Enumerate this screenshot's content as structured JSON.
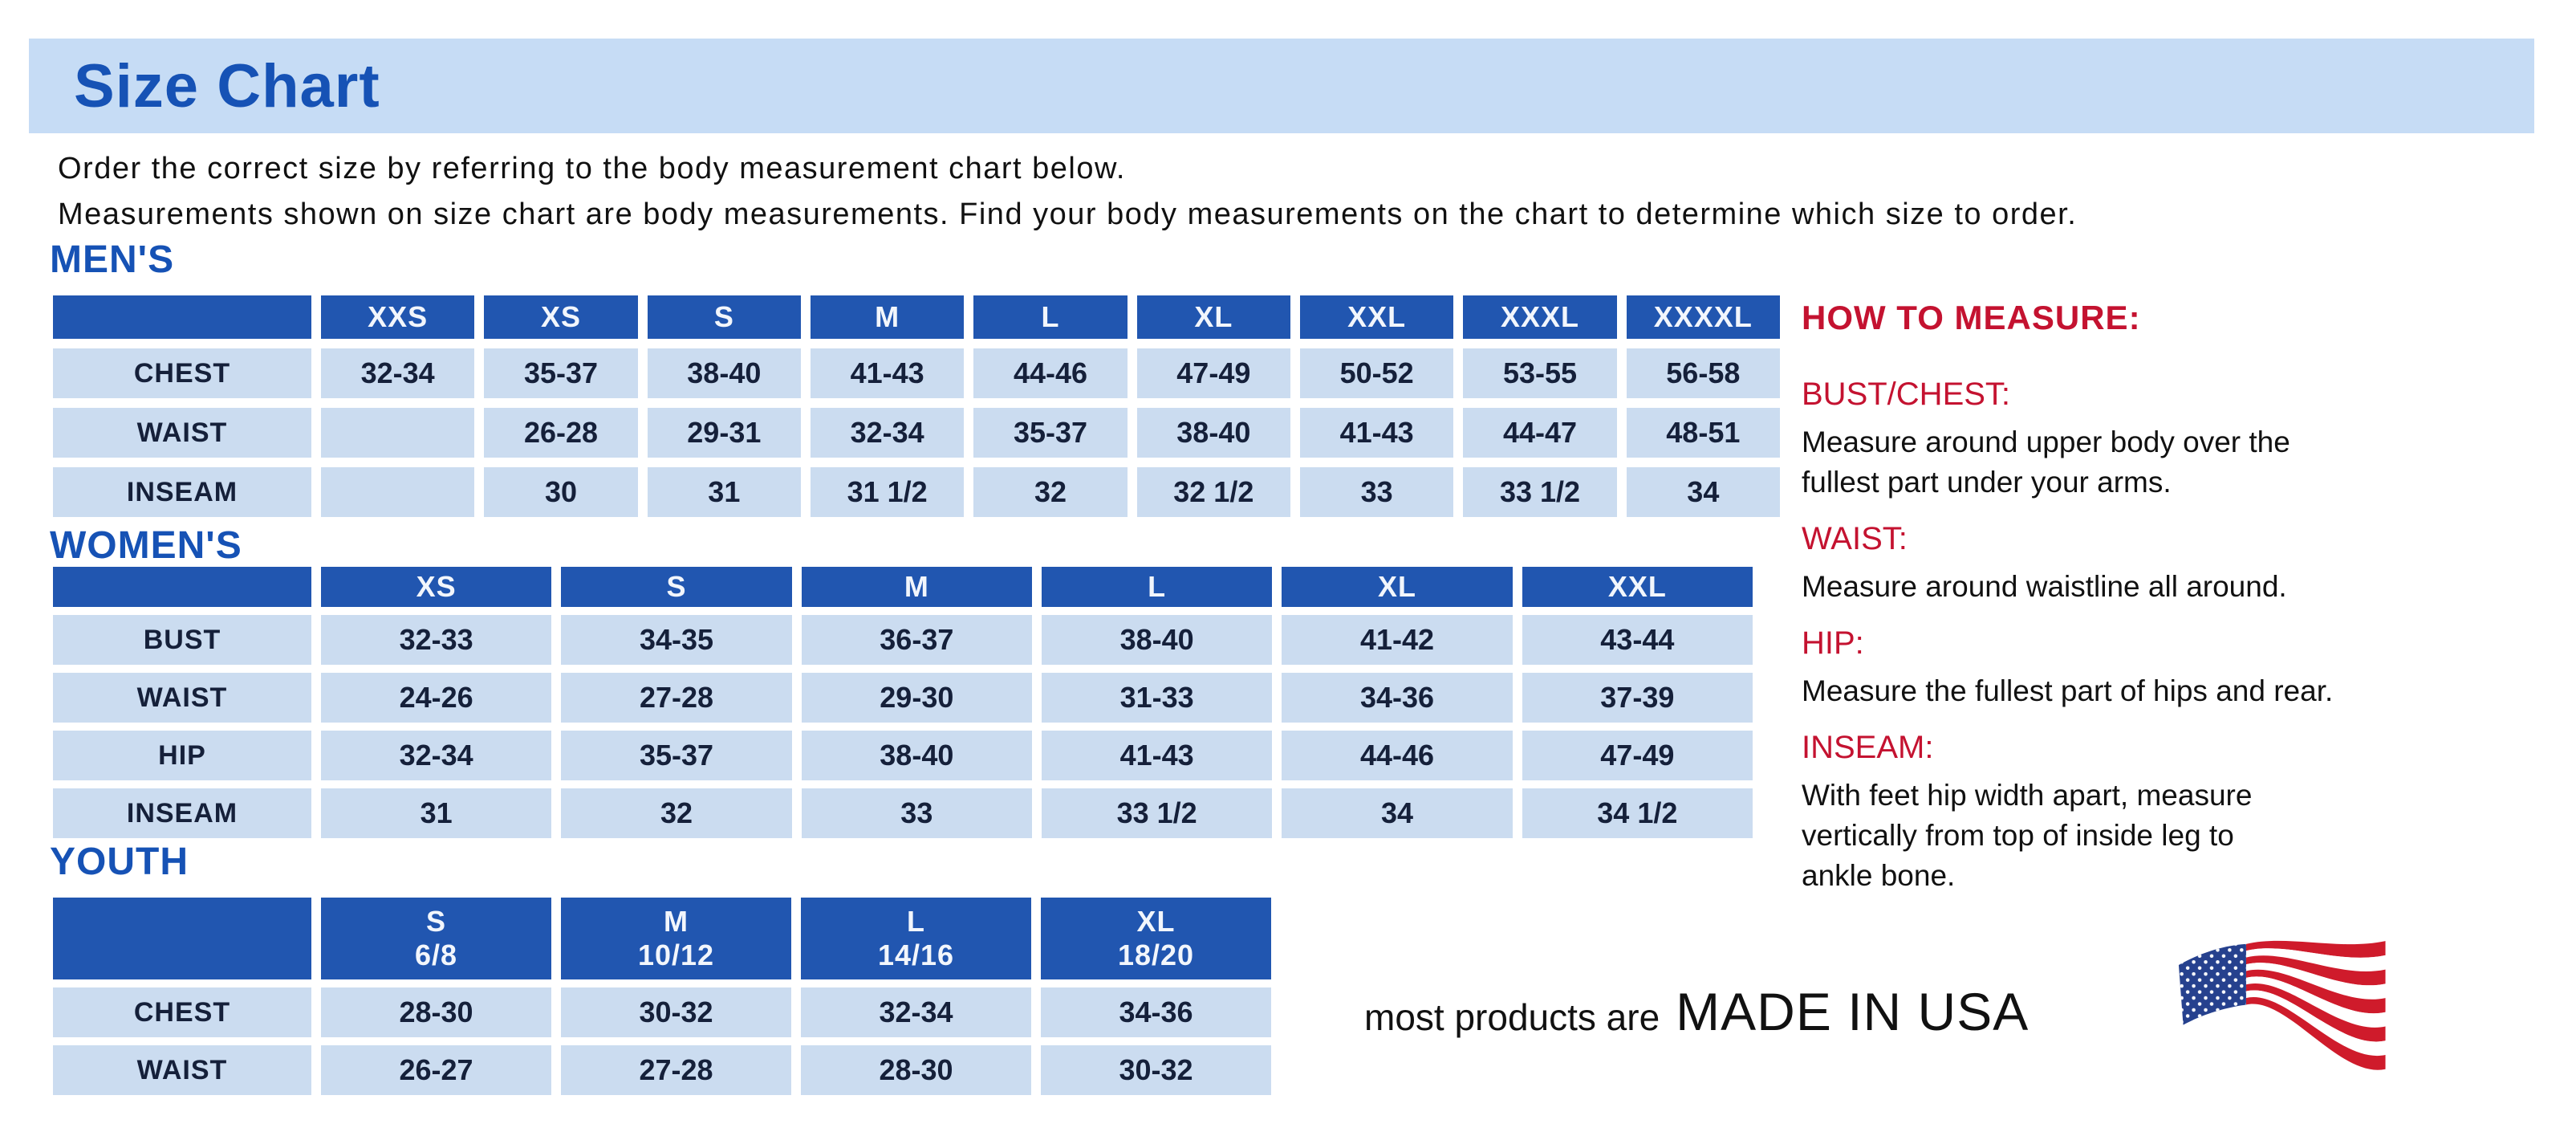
{
  "title": "Size Chart",
  "intro": {
    "line1": "Order the correct size by referring to the body measurement chart below.",
    "line2": "Measurements shown on size chart are body measurements.  Find your body measurements on the chart to determine which size to order."
  },
  "colors": {
    "banner_blue": "#c6dcf5",
    "accent_blue": "#1652b5",
    "table_header_blue": "#2156b0",
    "table_cell_blue": "#cbdcf0",
    "red": "#c41230",
    "text": "#141c2e",
    "flag_red": "#cf1b2b",
    "flag_blue": "#26418e"
  },
  "tables": {
    "mens": {
      "heading": "MEN'S",
      "columns": [
        "",
        "XXS",
        "XS",
        "S",
        "M",
        "L",
        "XL",
        "XXL",
        "XXXL",
        "XXXXL"
      ],
      "rows": [
        {
          "label": "CHEST",
          "values": [
            "32-34",
            "35-37",
            "38-40",
            "41-43",
            "44-46",
            "47-49",
            "50-52",
            "53-55",
            "56-58"
          ]
        },
        {
          "label": "WAIST",
          "values": [
            "",
            "26-28",
            "29-31",
            "32-34",
            "35-37",
            "38-40",
            "41-43",
            "44-47",
            "48-51"
          ]
        },
        {
          "label": "INSEAM",
          "values": [
            "",
            "30",
            "31",
            "31 1/2",
            "32",
            "32 1/2",
            "33",
            "33 1/2",
            "34"
          ]
        }
      ]
    },
    "womens": {
      "heading": "WOMEN'S",
      "columns": [
        "",
        "XS",
        "S",
        "M",
        "L",
        "XL",
        "XXL"
      ],
      "rows": [
        {
          "label": "BUST",
          "values": [
            "32-33",
            "34-35",
            "36-37",
            "38-40",
            "41-42",
            "43-44"
          ]
        },
        {
          "label": "WAIST",
          "values": [
            "24-26",
            "27-28",
            "29-30",
            "31-33",
            "34-36",
            "37-39"
          ]
        },
        {
          "label": "HIP",
          "values": [
            "32-34",
            "35-37",
            "38-40",
            "41-43",
            "44-46",
            "47-49"
          ]
        },
        {
          "label": "INSEAM",
          "values": [
            "31",
            "32",
            "33",
            "33 1/2",
            "34",
            "34 1/2"
          ]
        }
      ]
    },
    "youth": {
      "heading": "YOUTH",
      "columns": [
        "",
        [
          "S",
          "6/8"
        ],
        [
          "M",
          "10/12"
        ],
        [
          "L",
          "14/16"
        ],
        [
          "XL",
          "18/20"
        ]
      ],
      "rows": [
        {
          "label": "CHEST",
          "values": [
            "28-30",
            "30-32",
            "32-34",
            "34-36"
          ]
        },
        {
          "label": "WAIST",
          "values": [
            "26-27",
            "27-28",
            "28-30",
            "30-32"
          ]
        }
      ]
    }
  },
  "how_to_measure": {
    "heading": "HOW TO MEASURE:",
    "items": [
      {
        "label": "BUST/CHEST:",
        "lines": [
          "Measure around upper body over the",
          "fullest part under your arms."
        ]
      },
      {
        "label": "WAIST:",
        "lines": [
          "Measure around waistline all around."
        ]
      },
      {
        "label": "HIP:",
        "lines": [
          "Measure the fullest part of hips and rear."
        ]
      },
      {
        "label": "INSEAM:",
        "lines": [
          "With feet hip width apart, measure",
          "vertically from top of inside leg to",
          "ankle bone."
        ]
      }
    ]
  },
  "footer": {
    "prefix": "most products are",
    "emphasis": "MADE IN USA",
    "flag_icon": "usa-flag-icon"
  }
}
